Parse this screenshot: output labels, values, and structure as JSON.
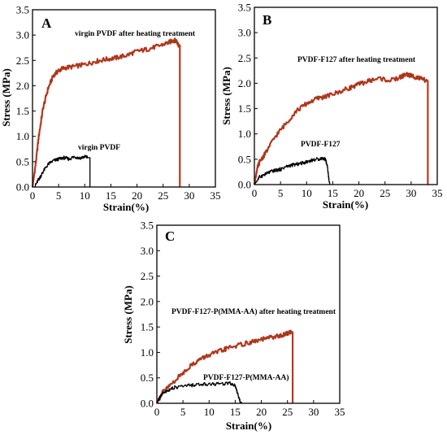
{
  "chart_data": [
    {
      "panel": "A",
      "type": "line",
      "xlabel": "Strain(%)",
      "ylabel": "Stress (MPa)",
      "xlim": [
        0,
        35
      ],
      "ylim": [
        0,
        3.5
      ],
      "xticks": [
        0,
        5,
        10,
        15,
        20,
        25,
        30,
        35
      ],
      "yticks": [
        0.0,
        0.5,
        1.0,
        1.5,
        2.0,
        2.5,
        3.0,
        3.5
      ],
      "grid": false,
      "legend": "none",
      "series": [
        {
          "name": "virgin PVDF after heating treatment",
          "color": "#8B4513",
          "break_at": 28.2,
          "x": [
            0,
            0.6,
            1.2,
            2,
            3,
            4,
            5,
            6,
            8,
            10,
            12,
            14,
            16,
            18,
            20,
            22,
            24,
            26,
            27,
            27.6,
            28
          ],
          "y": [
            0,
            0.45,
            1.0,
            1.55,
            1.95,
            2.2,
            2.3,
            2.35,
            2.38,
            2.42,
            2.48,
            2.52,
            2.55,
            2.6,
            2.68,
            2.72,
            2.78,
            2.85,
            2.9,
            2.88,
            2.8
          ]
        },
        {
          "name": "virgin PVDF",
          "color": "#000000",
          "break_at": 11.0,
          "x": [
            0.4,
            1,
            1.5,
            2,
            3,
            4,
            5,
            6,
            7,
            8,
            9,
            10,
            10.6
          ],
          "y": [
            0,
            0.12,
            0.2,
            0.3,
            0.45,
            0.52,
            0.55,
            0.58,
            0.55,
            0.6,
            0.57,
            0.6,
            0.58
          ]
        }
      ]
    },
    {
      "panel": "B",
      "type": "line",
      "xlabel": "Strain(%)",
      "ylabel": "Stress (MPa)",
      "xlim": [
        0,
        35
      ],
      "ylim": [
        0,
        3.5
      ],
      "xticks": [
        0,
        5,
        10,
        15,
        20,
        25,
        30,
        35
      ],
      "yticks": [
        0.0,
        0.5,
        1.0,
        1.5,
        2.0,
        2.5,
        3.0,
        3.5
      ],
      "grid": false,
      "legend": "none",
      "series": [
        {
          "name": "PVDF-F127 after heating treatment",
          "color": "#8B4513",
          "break_at": 33.2,
          "x": [
            0,
            0.5,
            1,
            2,
            4,
            6,
            8,
            10,
            12,
            14,
            16,
            18,
            20,
            22,
            24,
            26,
            28,
            29,
            30,
            31,
            32,
            33
          ],
          "y": [
            0,
            0.3,
            0.45,
            0.6,
            0.95,
            1.2,
            1.45,
            1.6,
            1.7,
            1.75,
            1.82,
            1.9,
            1.98,
            2.05,
            2.1,
            2.05,
            2.12,
            2.18,
            2.15,
            2.12,
            2.08,
            2.05
          ]
        },
        {
          "name": "PVDF-F127",
          "color": "#000000",
          "break_at": 14.4,
          "x": [
            0,
            1,
            2,
            3,
            4,
            5,
            6,
            7,
            8,
            9,
            10,
            11,
            12,
            13,
            13.6,
            14,
            14.3
          ],
          "y": [
            0,
            0.15,
            0.2,
            0.25,
            0.28,
            0.3,
            0.35,
            0.38,
            0.4,
            0.42,
            0.45,
            0.48,
            0.5,
            0.52,
            0.5,
            0.35,
            0.05
          ]
        }
      ]
    },
    {
      "panel": "C",
      "type": "line",
      "xlabel": "Strain(%)",
      "ylabel": "Stress (MPa)",
      "xlim": [
        0,
        35
      ],
      "ylim": [
        0,
        3.5
      ],
      "xticks": [
        0,
        5,
        10,
        15,
        20,
        25,
        30,
        35
      ],
      "yticks": [
        0.0,
        0.5,
        1.0,
        1.5,
        2.0,
        2.5,
        3.0,
        3.5
      ],
      "grid": false,
      "legend": "none",
      "series": [
        {
          "name": "PVDF-F127-P(MMA-AA) after heating treatment",
          "color": "#8B4513",
          "break_at": 26.0,
          "x": [
            0,
            1,
            2,
            4,
            6,
            8,
            10,
            12,
            14,
            16,
            18,
            20,
            22,
            24,
            25,
            25.8
          ],
          "y": [
            0,
            0.2,
            0.3,
            0.5,
            0.7,
            0.85,
            0.95,
            1.02,
            1.1,
            1.15,
            1.2,
            1.25,
            1.3,
            1.33,
            1.38,
            1.4
          ]
        },
        {
          "name": "PVDF-F127-P(MMA-AA)",
          "color": "#000000",
          "break_at": 16.2,
          "x": [
            0,
            0.5,
            1,
            2,
            3,
            4,
            6,
            8,
            10,
            12,
            14,
            15,
            15.6,
            16
          ],
          "y": [
            0,
            0.1,
            0.18,
            0.25,
            0.3,
            0.32,
            0.35,
            0.37,
            0.38,
            0.38,
            0.4,
            0.35,
            0.15,
            0.02
          ]
        }
      ]
    }
  ]
}
